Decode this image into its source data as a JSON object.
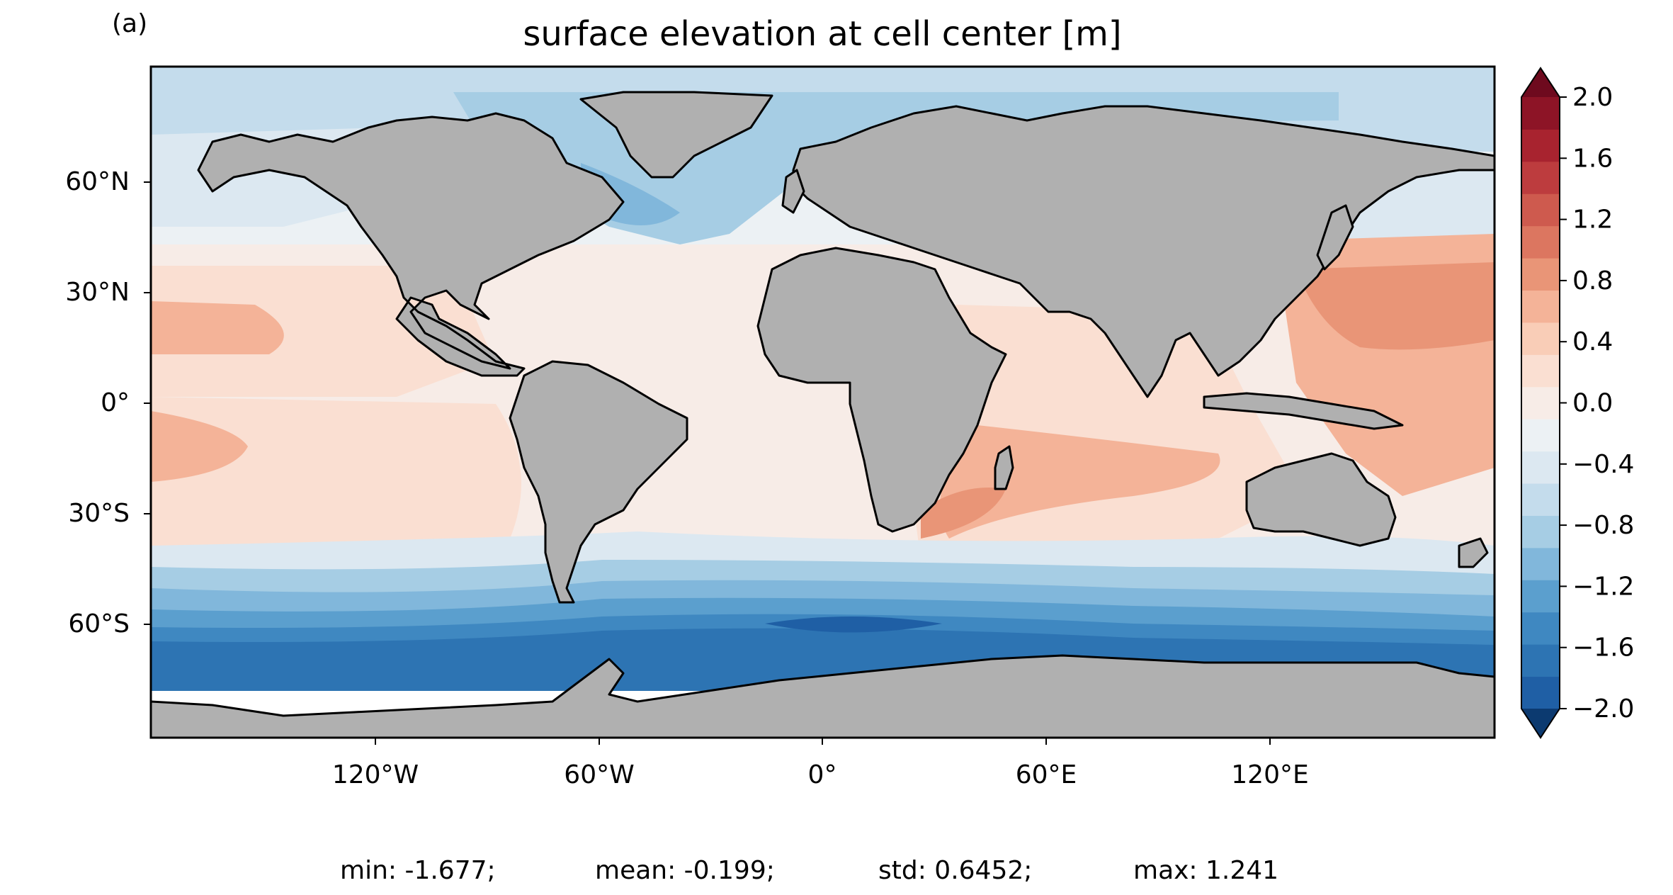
{
  "panel_label": "(a)",
  "title": "surface elevation at cell center [m]",
  "lat_ticks": [
    "60°N",
    "30°N",
    "0°",
    "30°S",
    "60°S"
  ],
  "lon_ticks": [
    "120°W",
    "60°W",
    "0°",
    "60°E",
    "120°E"
  ],
  "colorbar": {
    "ticks": [
      "2.0",
      "1.6",
      "1.2",
      "0.8",
      "0.4",
      "0.0",
      "−0.4",
      "−0.8",
      "−1.2",
      "−1.6",
      "−2.0"
    ],
    "levels_min": -2.0,
    "levels_max": 2.0,
    "level_step": 0.2,
    "extend": "both",
    "colormap": "RdBu_r",
    "colors": [
      "#0c3a70",
      "#1f5fa5",
      "#2d74b3",
      "#3f88c1",
      "#5b9fce",
      "#81b7db",
      "#a6cde4",
      "#c4dcec",
      "#dce8f1",
      "#ecf1f4",
      "#f7ece7",
      "#fadfd2",
      "#f9cdb7",
      "#f4b398",
      "#e99577",
      "#dc7660",
      "#ce5a4e",
      "#bd3c3e",
      "#a8232f",
      "#8d1426",
      "#6e0a1e"
    ]
  },
  "stats": {
    "min": "min: -1.677;",
    "mean": "mean: -0.199;",
    "std": "std: 0.6452;",
    "max": "max: 1.241"
  },
  "land_color": "#b0b0b0",
  "ocean_color": "#ecf1f4"
}
